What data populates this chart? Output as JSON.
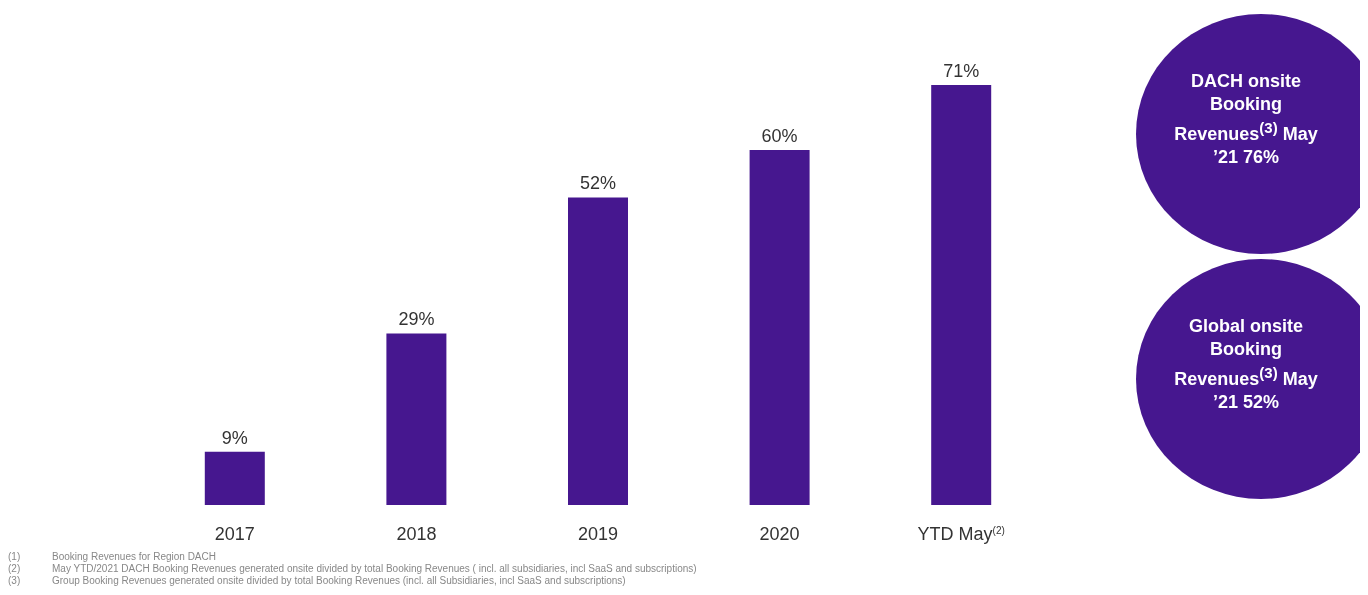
{
  "chart_data": [
    {
      "type": "bar",
      "categories": [
        "2017",
        "2018",
        "2019",
        "2020",
        "YTD May$^{(2)}$"
      ],
      "values": [
        9,
        29,
        52,
        60,
        71
      ],
      "color": "#46178f",
      "data_labels": true,
      "value_labels": [
        "9%",
        "29%",
        "52%",
        "60%",
        "71%"
      ],
      "annotations": [
        "(1)\tBooking Revenues for Region DACH",
        "(2)\tMay YTD/2021 DACH Booking Revenues generated onsite divided by total Booking Revenues ( incl. all subsidiaries, incl SaaS and subscriptions)",
        "(3)\tGroup Booking Revenues generated onsite divided by total Booking Revenues (incl. all Subsidiaries, incl SaaS and subscriptions)"
      ]
    },
    {
      "type": "other",
      "annotations": [
        "DACH onsite Booking Revenues$^{(3)}$ May ’21 76%",
        "Global onsite Booking Revenues$^{(3)}$ May ’21 52%"
      ]
    }
  ]
}
